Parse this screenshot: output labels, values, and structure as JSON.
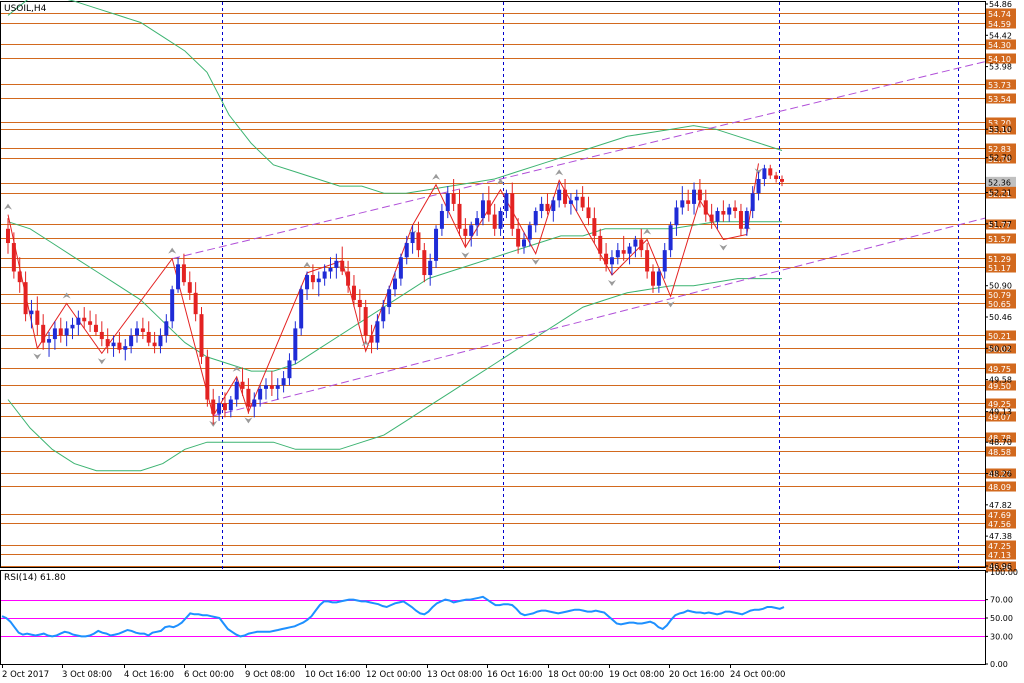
{
  "chart_data": {
    "type": "candlestick",
    "symbol_label": "USOIL,H4",
    "price_axis": {
      "ylim": [
        46.96,
        54.86
      ],
      "tick_labels": [
        "54.86",
        "54.42",
        "53.98",
        "53.10",
        "52.70",
        "52.21",
        "51.77",
        "50.90",
        "50.46",
        "50.02",
        "49.58",
        "49.13",
        "48.70",
        "48.26",
        "47.82",
        "47.38",
        "46.96"
      ],
      "level_lines": [
        {
          "value": 54.74,
          "label": "54.74"
        },
        {
          "value": 54.59,
          "label": "54.59"
        },
        {
          "value": 54.3,
          "label": "54.30"
        },
        {
          "value": 54.1,
          "label": "54.10"
        },
        {
          "value": 53.73,
          "label": "53.73"
        },
        {
          "value": 53.54,
          "label": "53.54"
        },
        {
          "value": 53.2,
          "label": "53.20"
        },
        {
          "value": 53.1,
          "label": "53.10"
        },
        {
          "value": 52.83,
          "label": "52.83"
        },
        {
          "value": 52.7,
          "label": "52.70"
        },
        {
          "value": 52.34,
          "label": "52.34"
        },
        {
          "value": 52.21,
          "label": "52.21"
        },
        {
          "value": 51.77,
          "label": "51.77"
        },
        {
          "value": 51.57,
          "label": "51.57"
        },
        {
          "value": 51.29,
          "label": "51.29"
        },
        {
          "value": 51.17,
          "label": "51.17"
        },
        {
          "value": 50.79,
          "label": "50.79"
        },
        {
          "value": 50.65,
          "label": "50.65"
        },
        {
          "value": 50.21,
          "label": "50.21"
        },
        {
          "value": 50.02,
          "label": "50.02"
        },
        {
          "value": 49.75,
          "label": "49.75"
        },
        {
          "value": 49.5,
          "label": "49.50"
        },
        {
          "value": 49.25,
          "label": "49.25"
        },
        {
          "value": 49.07,
          "label": "49.07"
        },
        {
          "value": 48.78,
          "label": "48.78"
        },
        {
          "value": 48.58,
          "label": "48.58"
        },
        {
          "value": 48.27,
          "label": "48.27"
        },
        {
          "value": 48.09,
          "label": "48.09"
        },
        {
          "value": 47.69,
          "label": "47.69"
        },
        {
          "value": 47.56,
          "label": "47.56"
        },
        {
          "value": 47.25,
          "label": "47.25"
        },
        {
          "value": 47.13,
          "label": "47.13"
        },
        {
          "value": 46.96,
          "label": "46.96"
        }
      ],
      "current_price": {
        "value": 52.36,
        "label": "52.36"
      }
    },
    "x_axis": {
      "tick_labels": [
        "2 Oct 2017",
        "3 Oct 08:00",
        "4 Oct 16:00",
        "6 Oct 00:00",
        "9 Oct 08:00",
        "10 Oct 16:00",
        "12 Oct 00:00",
        "13 Oct 08:00",
        "16 Oct 16:00",
        "18 Oct 00:00",
        "19 Oct 08:00",
        "20 Oct 16:00",
        "24 Oct 00:00"
      ],
      "period_separators_after_bar": [
        36,
        84,
        131,
        180
      ]
    },
    "candles": [
      [
        51.7,
        51.85,
        51.35,
        51.5
      ],
      [
        51.5,
        51.65,
        51.0,
        51.1
      ],
      [
        51.1,
        51.3,
        50.8,
        50.95
      ],
      [
        50.95,
        51.1,
        50.4,
        50.5
      ],
      [
        50.5,
        50.7,
        50.3,
        50.55
      ],
      [
        50.55,
        50.75,
        50.2,
        50.35
      ],
      [
        50.35,
        50.5,
        50.0,
        50.1
      ],
      [
        50.1,
        50.25,
        49.9,
        50.15
      ],
      [
        50.15,
        50.4,
        50.0,
        50.3
      ],
      [
        50.3,
        50.45,
        50.1,
        50.2
      ],
      [
        50.2,
        50.4,
        50.05,
        50.3
      ],
      [
        50.3,
        50.45,
        50.15,
        50.35
      ],
      [
        50.35,
        50.55,
        50.2,
        50.45
      ],
      [
        50.45,
        50.6,
        50.3,
        50.4
      ],
      [
        50.4,
        50.55,
        50.25,
        50.35
      ],
      [
        50.35,
        50.5,
        50.2,
        50.25
      ],
      [
        50.25,
        50.4,
        50.05,
        50.15
      ],
      [
        50.15,
        50.3,
        49.95,
        50.05
      ],
      [
        50.05,
        50.2,
        49.9,
        50.1
      ],
      [
        50.1,
        50.25,
        49.95,
        50.0
      ],
      [
        50.0,
        50.15,
        49.85,
        50.05
      ],
      [
        50.05,
        50.3,
        49.95,
        50.2
      ],
      [
        50.2,
        50.4,
        50.1,
        50.3
      ],
      [
        50.3,
        50.45,
        50.15,
        50.25
      ],
      [
        50.25,
        50.4,
        50.05,
        50.1
      ],
      [
        50.1,
        50.25,
        49.95,
        50.05
      ],
      [
        50.05,
        50.3,
        49.95,
        50.2
      ],
      [
        50.2,
        50.5,
        50.1,
        50.4
      ],
      [
        50.4,
        50.9,
        50.3,
        50.85
      ],
      [
        50.85,
        51.3,
        50.8,
        51.2
      ],
      [
        51.2,
        51.35,
        50.9,
        50.95
      ],
      [
        50.95,
        51.1,
        50.7,
        50.8
      ],
      [
        50.8,
        50.95,
        50.4,
        50.5
      ],
      [
        50.5,
        50.6,
        49.8,
        49.9
      ],
      [
        49.9,
        50.0,
        49.2,
        49.3
      ],
      [
        49.3,
        49.45,
        48.95,
        49.1
      ],
      [
        49.1,
        49.35,
        49.0,
        49.25
      ],
      [
        49.25,
        49.4,
        49.05,
        49.15
      ],
      [
        49.15,
        49.35,
        49.05,
        49.3
      ],
      [
        49.3,
        49.6,
        49.2,
        49.55
      ],
      [
        49.55,
        49.75,
        49.35,
        49.45
      ],
      [
        49.45,
        49.6,
        49.1,
        49.2
      ],
      [
        49.2,
        49.4,
        49.05,
        49.3
      ],
      [
        49.3,
        49.5,
        49.2,
        49.45
      ],
      [
        49.45,
        49.6,
        49.3,
        49.5
      ],
      [
        49.5,
        49.7,
        49.35,
        49.45
      ],
      [
        49.45,
        49.6,
        49.3,
        49.5
      ],
      [
        49.5,
        49.7,
        49.4,
        49.6
      ],
      [
        49.6,
        49.95,
        49.5,
        49.85
      ],
      [
        49.85,
        50.4,
        49.8,
        50.3
      ],
      [
        50.3,
        50.9,
        50.2,
        50.85
      ],
      [
        50.85,
        51.1,
        50.7,
        51.05
      ],
      [
        51.05,
        51.2,
        50.85,
        50.95
      ],
      [
        50.95,
        51.1,
        50.75,
        51.0
      ],
      [
        51.0,
        51.2,
        50.9,
        51.1
      ],
      [
        51.1,
        51.3,
        51.0,
        51.15
      ],
      [
        51.15,
        51.35,
        51.0,
        51.25
      ],
      [
        51.25,
        51.45,
        51.05,
        51.1
      ],
      [
        51.1,
        51.25,
        50.8,
        50.9
      ],
      [
        50.9,
        51.05,
        50.6,
        50.7
      ],
      [
        50.7,
        50.85,
        50.4,
        50.6
      ],
      [
        50.6,
        50.7,
        50.1,
        50.2
      ],
      [
        50.2,
        50.35,
        49.95,
        50.1
      ],
      [
        50.1,
        50.5,
        50.0,
        50.4
      ],
      [
        50.4,
        50.7,
        50.3,
        50.6
      ],
      [
        50.6,
        50.9,
        50.5,
        50.85
      ],
      [
        50.85,
        51.1,
        50.75,
        51.0
      ],
      [
        51.0,
        51.35,
        50.9,
        51.3
      ],
      [
        51.3,
        51.6,
        51.2,
        51.5
      ],
      [
        51.5,
        51.75,
        51.35,
        51.65
      ],
      [
        51.65,
        51.8,
        51.3,
        51.4
      ],
      [
        51.4,
        51.5,
        50.95,
        51.05
      ],
      [
        51.05,
        51.35,
        50.9,
        51.25
      ],
      [
        51.25,
        51.75,
        51.15,
        51.7
      ],
      [
        51.7,
        52.05,
        51.6,
        51.95
      ],
      [
        51.95,
        52.3,
        51.85,
        52.2
      ],
      [
        52.2,
        52.4,
        51.95,
        52.05
      ],
      [
        52.05,
        52.25,
        51.6,
        51.7
      ],
      [
        51.7,
        51.85,
        51.45,
        51.6
      ],
      [
        51.6,
        51.8,
        51.45,
        51.75
      ],
      [
        51.75,
        51.95,
        51.6,
        51.85
      ],
      [
        51.85,
        52.2,
        51.75,
        52.1
      ],
      [
        52.1,
        52.3,
        51.8,
        51.9
      ],
      [
        51.9,
        52.05,
        51.6,
        51.7
      ],
      [
        51.7,
        52.0,
        51.6,
        51.95
      ],
      [
        51.95,
        52.25,
        51.85,
        52.2
      ],
      [
        52.2,
        52.35,
        51.6,
        51.7
      ],
      [
        51.7,
        51.85,
        51.35,
        51.45
      ],
      [
        51.45,
        51.65,
        51.35,
        51.55
      ],
      [
        51.55,
        51.8,
        51.45,
        51.75
      ],
      [
        51.75,
        52.0,
        51.65,
        51.95
      ],
      [
        51.95,
        52.15,
        51.85,
        52.05
      ],
      [
        52.05,
        52.2,
        51.9,
        51.95
      ],
      [
        51.95,
        52.15,
        51.8,
        52.1
      ],
      [
        52.1,
        52.35,
        52.0,
        52.25
      ],
      [
        52.25,
        52.4,
        52.0,
        52.05
      ],
      [
        52.05,
        52.2,
        51.9,
        52.1
      ],
      [
        52.1,
        52.25,
        51.95,
        52.15
      ],
      [
        52.15,
        52.3,
        51.95,
        52.0
      ],
      [
        52.0,
        52.15,
        51.75,
        51.85
      ],
      [
        51.85,
        52.0,
        51.5,
        51.6
      ],
      [
        51.6,
        51.7,
        51.25,
        51.35
      ],
      [
        51.35,
        51.5,
        51.1,
        51.2
      ],
      [
        51.2,
        51.4,
        51.05,
        51.3
      ],
      [
        51.3,
        51.5,
        51.2,
        51.4
      ],
      [
        51.4,
        51.6,
        51.25,
        51.35
      ],
      [
        51.35,
        51.5,
        51.2,
        51.45
      ],
      [
        51.45,
        51.6,
        51.3,
        51.55
      ],
      [
        51.55,
        51.7,
        51.3,
        51.4
      ],
      [
        51.4,
        51.5,
        51.0,
        51.1
      ],
      [
        51.1,
        51.2,
        50.8,
        50.9
      ],
      [
        50.9,
        51.15,
        50.8,
        51.1
      ],
      [
        51.1,
        51.5,
        51.0,
        51.4
      ],
      [
        51.4,
        51.8,
        51.3,
        51.75
      ],
      [
        51.75,
        52.1,
        51.6,
        52.0
      ],
      [
        52.0,
        52.3,
        51.9,
        52.1
      ],
      [
        52.1,
        52.25,
        51.95,
        52.05
      ],
      [
        52.05,
        52.35,
        51.9,
        52.25
      ],
      [
        52.25,
        52.4,
        52.0,
        52.1
      ],
      [
        52.1,
        52.25,
        51.8,
        51.9
      ],
      [
        51.9,
        52.05,
        51.7,
        51.8
      ],
      [
        51.8,
        52.0,
        51.7,
        51.95
      ],
      [
        51.95,
        52.1,
        51.8,
        51.9
      ],
      [
        51.9,
        52.05,
        51.8,
        52.0
      ],
      [
        52.0,
        52.1,
        51.85,
        51.95
      ],
      [
        51.95,
        52.05,
        51.6,
        51.7
      ],
      [
        51.7,
        52.0,
        51.6,
        51.95
      ],
      [
        51.95,
        52.3,
        51.85,
        52.2
      ],
      [
        52.2,
        52.5,
        52.1,
        52.4
      ],
      [
        52.4,
        52.6,
        52.3,
        52.55
      ],
      [
        52.55,
        52.6,
        52.4,
        52.45
      ],
      [
        52.45,
        52.5,
        52.35,
        52.4
      ],
      [
        52.4,
        52.45,
        52.3,
        52.36
      ]
    ],
    "indicator": {
      "name": "RSI(14)",
      "value_label": "61.80",
      "axis_labels": [
        "100.00",
        "70.00",
        "50.00",
        "30.00",
        "0.00"
      ],
      "levels": [
        70,
        50,
        30
      ],
      "ylim": [
        0,
        100
      ],
      "values": [
        52,
        50,
        46,
        40,
        34,
        32,
        33,
        32,
        31,
        32,
        33,
        31,
        30,
        31,
        33,
        35,
        34,
        32,
        31,
        30,
        30,
        31,
        33,
        36,
        34,
        33,
        31,
        32,
        33,
        35,
        37,
        36,
        34,
        33,
        33,
        31,
        34,
        35,
        36,
        40,
        41,
        40,
        42,
        45,
        50,
        55,
        54,
        54,
        53,
        53,
        52,
        51,
        50,
        44,
        38,
        35,
        32,
        30,
        31,
        33,
        34,
        35,
        35,
        35,
        35,
        36,
        37,
        38,
        39,
        40,
        41,
        43,
        45,
        48,
        52,
        58,
        64,
        68,
        68,
        67,
        67,
        68,
        69,
        70,
        70,
        69,
        68,
        68,
        67,
        66,
        65,
        63,
        62,
        64,
        66,
        67,
        68,
        65,
        62,
        58,
        55,
        54,
        57,
        62,
        66,
        68,
        70,
        69,
        67,
        68,
        69,
        70,
        70,
        71,
        72,
        73,
        70,
        67,
        64,
        64,
        65,
        65,
        64,
        60,
        55,
        53,
        54,
        55,
        57,
        58,
        58,
        57,
        56,
        55,
        56,
        57,
        58,
        59,
        59,
        58,
        57,
        57,
        58,
        57,
        56,
        52,
        48,
        44,
        43,
        44,
        45,
        45,
        44,
        44,
        45,
        46,
        44,
        40,
        38,
        42,
        48,
        53,
        55,
        56,
        58,
        57,
        56,
        56,
        55,
        56,
        55,
        54,
        55,
        57,
        57,
        56,
        55,
        54,
        56,
        58,
        59,
        59,
        60,
        62,
        62,
        61,
        60,
        61.8
      ]
    },
    "bollinger": {
      "upper": [
        54.7,
        54.95,
        54.98,
        54.9,
        54.8,
        54.7,
        54.6,
        54.4,
        54.2,
        53.9,
        53.3,
        52.9,
        52.6,
        52.5,
        52.4,
        52.3,
        52.3,
        52.2,
        52.2,
        52.25,
        52.3,
        52.35,
        52.4,
        52.5,
        52.6,
        52.7,
        52.8,
        52.9,
        53.0,
        53.05,
        53.1,
        53.15,
        53.1,
        53.0,
        52.9,
        52.8
      ],
      "middle": [
        51.8,
        51.7,
        51.5,
        51.3,
        51.1,
        50.9,
        50.7,
        50.4,
        50.1,
        49.9,
        49.8,
        49.7,
        49.7,
        49.8,
        50.0,
        50.2,
        50.4,
        50.6,
        50.8,
        51.0,
        51.1,
        51.2,
        51.3,
        51.4,
        51.5,
        51.6,
        51.6,
        51.7,
        51.7,
        51.7,
        51.7,
        51.75,
        51.8,
        51.8,
        51.8,
        51.8
      ],
      "lower": [
        49.3,
        48.9,
        48.6,
        48.4,
        48.3,
        48.3,
        48.3,
        48.4,
        48.6,
        48.7,
        48.7,
        48.7,
        48.7,
        48.6,
        48.6,
        48.6,
        48.7,
        48.8,
        49.0,
        49.2,
        49.4,
        49.6,
        49.8,
        50.0,
        50.2,
        50.4,
        50.6,
        50.7,
        50.8,
        50.85,
        50.9,
        50.9,
        50.95,
        51.0,
        51.0,
        51.0
      ]
    }
  }
}
